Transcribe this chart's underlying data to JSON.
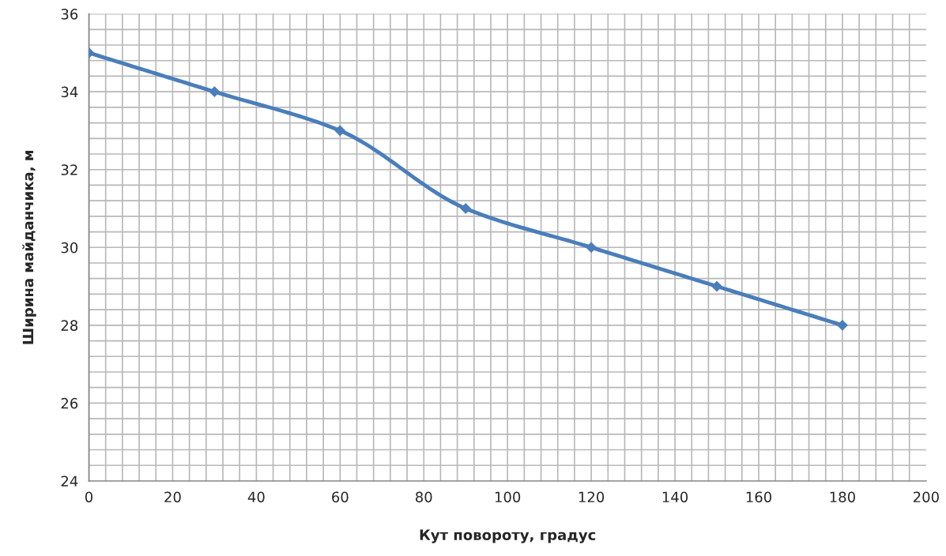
{
  "chart_data": {
    "type": "line",
    "xlabel": "Кут повороту, градус",
    "ylabel": "Ширина майданчика, м",
    "x": [
      0,
      30,
      60,
      90,
      120,
      150,
      180
    ],
    "series": [
      {
        "color": "#4a7ebb",
        "values": [
          35,
          34,
          33,
          31,
          30,
          29,
          28
        ]
      }
    ],
    "xlim": [
      0,
      200
    ],
    "xticks": [
      0,
      20,
      40,
      60,
      80,
      100,
      120,
      140,
      160,
      180,
      200
    ],
    "ylim": [
      24,
      36
    ],
    "yticks": [
      24,
      26,
      28,
      30,
      32,
      34,
      36
    ],
    "grid": true,
    "marker": "diamond",
    "line_style": "solid",
    "legend": false
  }
}
